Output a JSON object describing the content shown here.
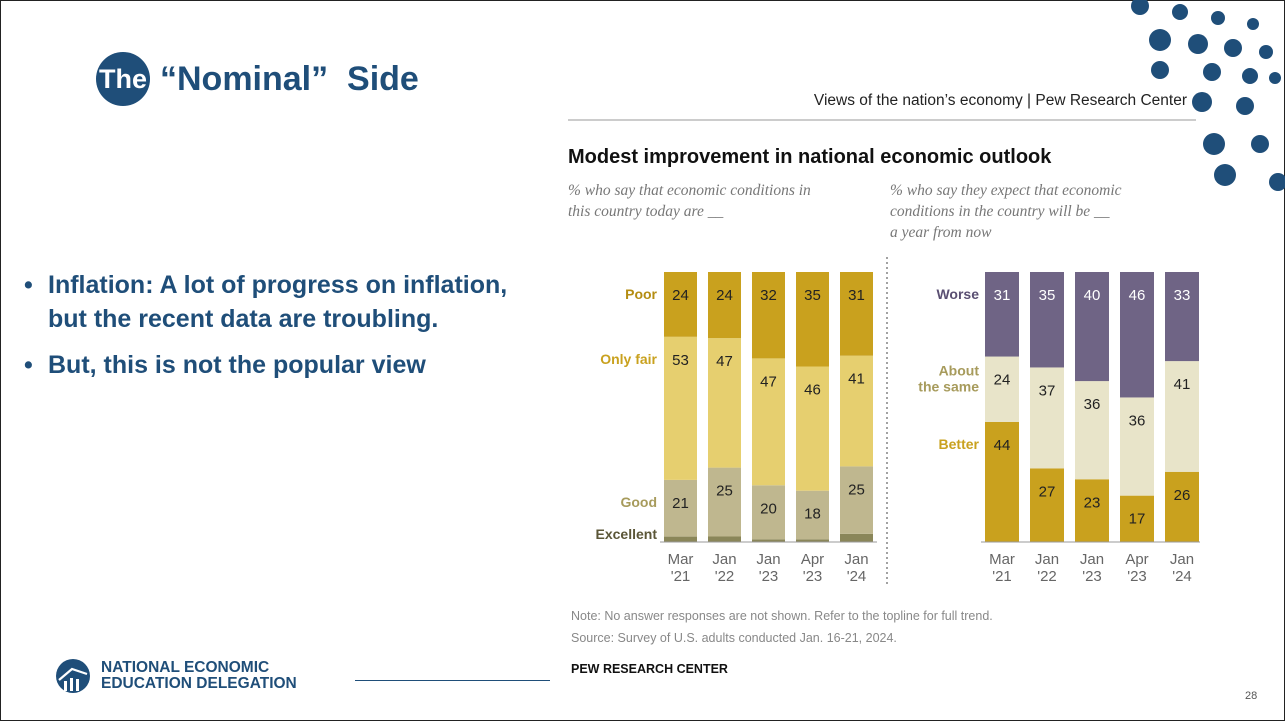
{
  "slide": {
    "title_circle": "The",
    "title": "“Nominal”  Side",
    "bullets": [
      "Inflation:  A lot of progress on inflation, but the recent data are troubling.",
      "But, this is not the popular view"
    ],
    "logo_line1": "NATIONAL ECONOMIC",
    "logo_line2": "EDUCATION DELEGATION",
    "page_number": "28",
    "colors": {
      "brand": "#1f4e79"
    }
  },
  "chart_data": [
    {
      "type": "bar",
      "stacked": true,
      "header": "Views of the nation’s economy | Pew Research Center",
      "title": "Modest improvement in national economic outlook",
      "subtitle": "% who say that economic conditions in this country today are __",
      "categories": [
        "Mar '21",
        "Jan '22",
        "Jan '23",
        "Apr '23",
        "Jan '24"
      ],
      "series": [
        {
          "name": "Excellent",
          "values": [
            2,
            2,
            1,
            1,
            3
          ],
          "color": "#8a8659"
        },
        {
          "name": "Good",
          "values": [
            21,
            25,
            20,
            18,
            25
          ],
          "color": "#bfb78f"
        },
        {
          "name": "Only fair",
          "values": [
            53,
            47,
            47,
            46,
            41
          ],
          "color": "#e6cf6f"
        },
        {
          "name": "Poor",
          "values": [
            24,
            24,
            32,
            35,
            31
          ],
          "color": "#c9a11e"
        }
      ],
      "labeled_series": [
        "Good",
        "Only fair",
        "Poor"
      ],
      "ylim": [
        0,
        100
      ]
    },
    {
      "type": "bar",
      "stacked": true,
      "subtitle": "% who say they expect that economic conditions in the country will be __ a year from now",
      "categories": [
        "Mar '21",
        "Jan '22",
        "Jan '23",
        "Apr '23",
        "Jan '24"
      ],
      "series": [
        {
          "name": "Better",
          "values": [
            44,
            27,
            23,
            17,
            26
          ],
          "color": "#c9a11e"
        },
        {
          "name": "About the same",
          "values": [
            24,
            37,
            36,
            36,
            41
          ],
          "color": "#e8e4c9"
        },
        {
          "name": "Worse",
          "values": [
            31,
            35,
            40,
            46,
            33
          ],
          "color": "#6f6485"
        }
      ],
      "labeled_series": [
        "Better",
        "About the same",
        "Worse"
      ],
      "ylim": [
        0,
        100
      ]
    }
  ],
  "chart_notes": {
    "note": "Note: No answer responses are not shown. Refer to the topline for full trend.",
    "source": "Source: Survey of U.S. adults conducted Jan. 16-21, 2024.",
    "brand": "PEW RESEARCH CENTER"
  }
}
